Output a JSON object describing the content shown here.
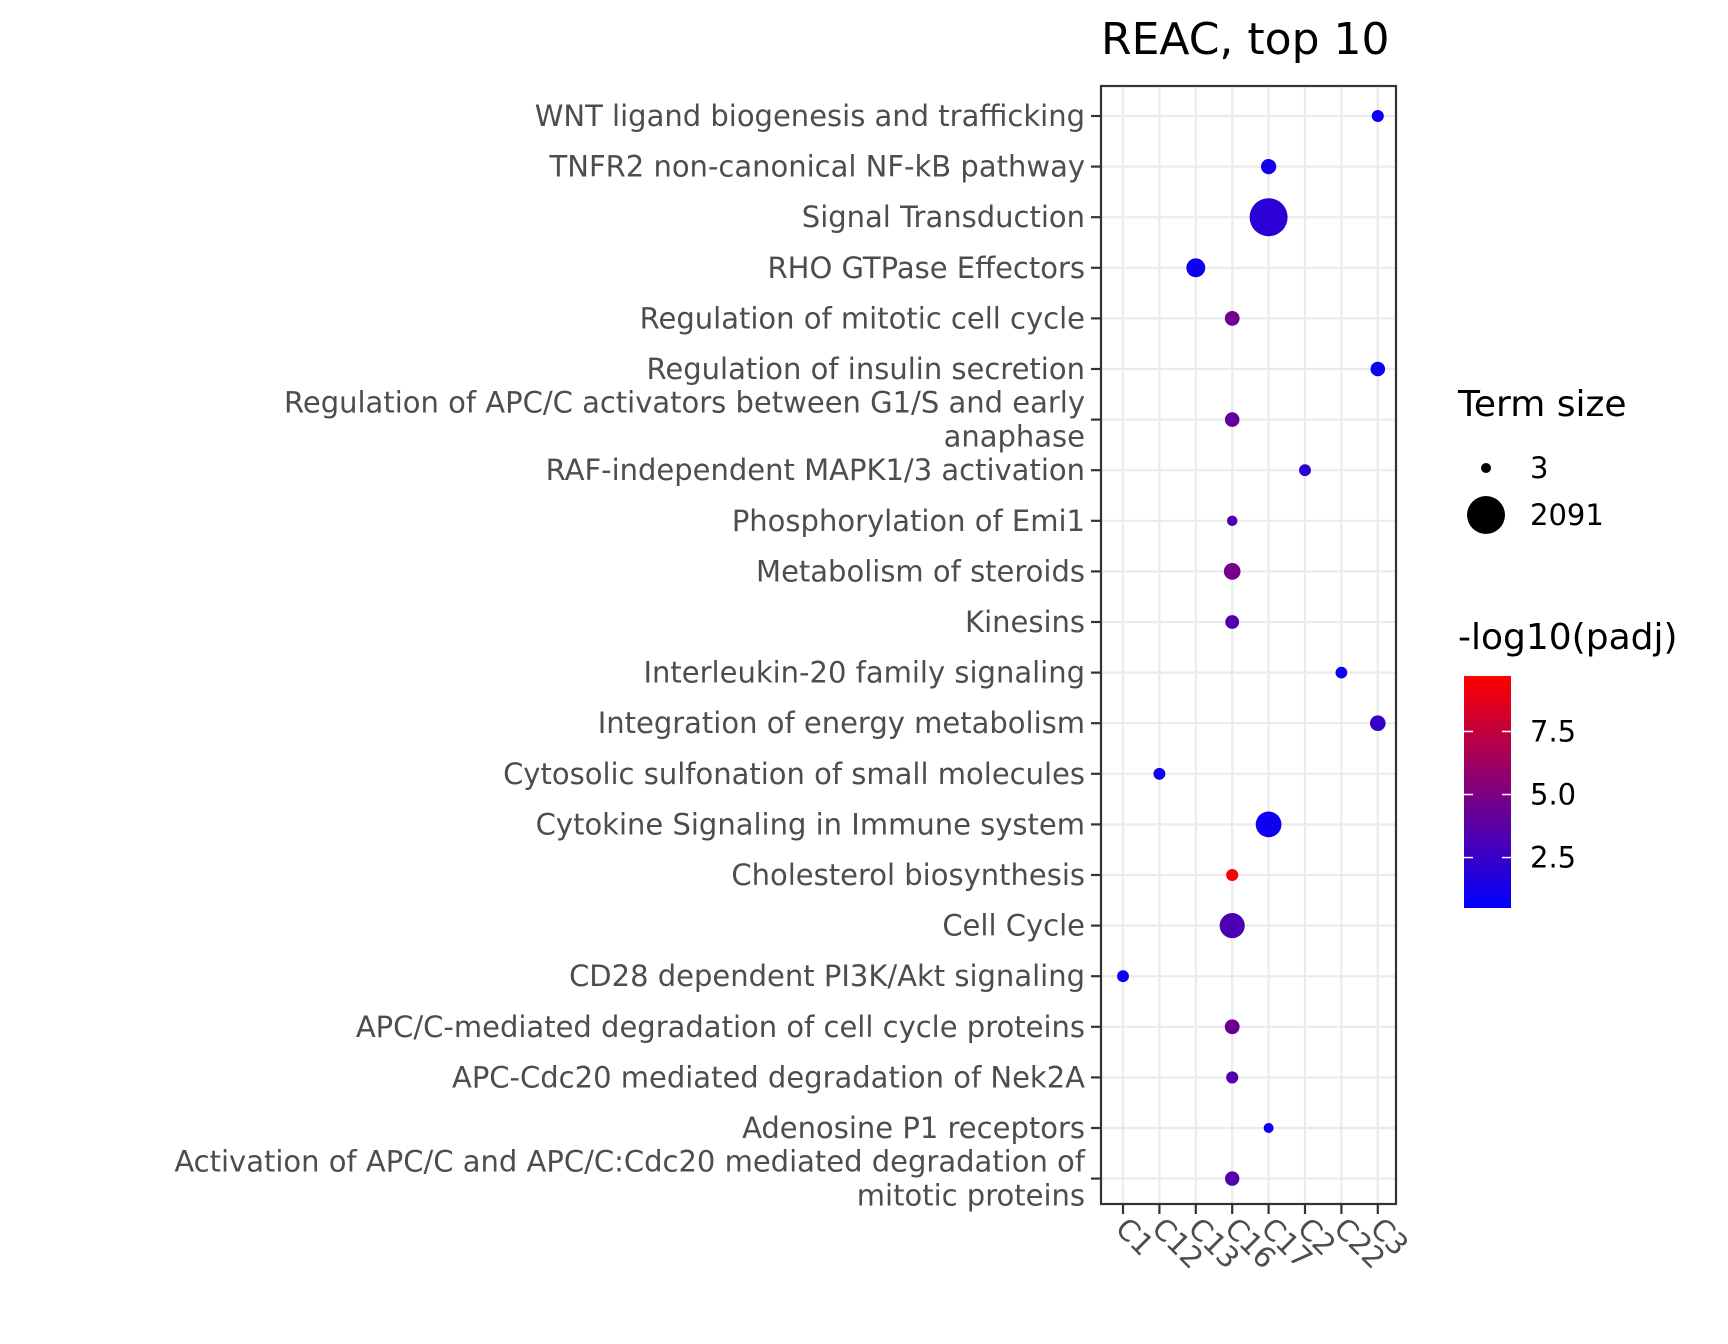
{
  "chart_data": {
    "type": "scatter",
    "title": "REAC, top 10",
    "xlabel": "",
    "ylabel": "",
    "x_categories": [
      "C1",
      "C12",
      "C13",
      "C16",
      "C17",
      "C2",
      "C22",
      "C3"
    ],
    "y_categories": [
      "WNT ligand biogenesis and trafficking",
      "TNFR2 non-canonical NF-kB pathway",
      "Signal Transduction",
      "RHO GTPase Effectors",
      "Regulation of mitotic cell cycle",
      "Regulation of insulin secretion",
      "Regulation of APC/C activators between G1/S and early anaphase",
      "RAF-independent MAPK1/3 activation",
      "Phosphorylation of Emi1",
      "Metabolism of steroids",
      "Kinesins",
      "Interleukin-20 family signaling",
      "Integration of energy metabolism",
      "Cytosolic sulfonation of small molecules",
      "Cytokine Signaling in Immune system",
      "Cholesterol biosynthesis",
      "Cell Cycle",
      "CD28 dependent PI3K/Akt signaling",
      "APC/C-mediated degradation of cell cycle proteins",
      "APC-Cdc20 mediated degradation of Nek2A",
      "Adenosine P1 receptors",
      "Activation of APC/C and APC/C:Cdc20 mediated degradation of mitotic proteins"
    ],
    "y_category_lines": [
      [
        "WNT ligand biogenesis and trafficking"
      ],
      [
        "TNFR2 non-canonical NF-kB pathway"
      ],
      [
        "Signal Transduction"
      ],
      [
        "RHO GTPase Effectors"
      ],
      [
        "Regulation of mitotic cell cycle"
      ],
      [
        "Regulation of insulin secretion"
      ],
      [
        "Regulation of APC/C activators between G1/S and early",
        "anaphase"
      ],
      [
        "RAF-independent MAPK1/3 activation"
      ],
      [
        "Phosphorylation of Emi1"
      ],
      [
        "Metabolism of steroids"
      ],
      [
        "Kinesins"
      ],
      [
        "Interleukin-20 family signaling"
      ],
      [
        "Integration of energy metabolism"
      ],
      [
        "Cytosolic sulfonation of small molecules"
      ],
      [
        "Cytokine Signaling in Immune system"
      ],
      [
        "Cholesterol biosynthesis"
      ],
      [
        "Cell Cycle"
      ],
      [
        "CD28 dependent PI3K/Akt signaling"
      ],
      [
        "APC/C-mediated degradation of cell cycle proteins"
      ],
      [
        "APC-Cdc20 mediated degradation of Nek2A"
      ],
      [
        "Adenosine P1 receptors"
      ],
      [
        "Activation of APC/C and APC/C:Cdc20 mediated degradation of",
        "mitotic proteins"
      ]
    ],
    "points": [
      {
        "term": "WNT ligand biogenesis and trafficking",
        "cluster": "C3",
        "term_size": 25,
        "neg_log10_padj": 0.9
      },
      {
        "term": "TNFR2 non-canonical NF-kB pathway",
        "cluster": "C17",
        "term_size": 100,
        "neg_log10_padj": 1.1
      },
      {
        "term": "Signal Transduction",
        "cluster": "C17",
        "term_size": 2091,
        "neg_log10_padj": 2.0
      },
      {
        "term": "RHO GTPase Effectors",
        "cluster": "C13",
        "term_size": 250,
        "neg_log10_padj": 1.0
      },
      {
        "term": "Regulation of mitotic cell cycle",
        "cluster": "C16",
        "term_size": 85,
        "neg_log10_padj": 4.5
      },
      {
        "term": "Regulation of insulin secretion",
        "cluster": "C3",
        "term_size": 80,
        "neg_log10_padj": 1.0
      },
      {
        "term": "Regulation of APC/C activators between G1/S and early anaphase",
        "cluster": "C16",
        "term_size": 80,
        "neg_log10_padj": 4.0
      },
      {
        "term": "RAF-independent MAPK1/3 activation",
        "cluster": "C2",
        "term_size": 22,
        "neg_log10_padj": 2.2
      },
      {
        "term": "Phosphorylation of Emi1",
        "cluster": "C16",
        "term_size": 6,
        "neg_log10_padj": 3.3
      },
      {
        "term": "Metabolism of steroids",
        "cluster": "C16",
        "term_size": 150,
        "neg_log10_padj": 4.7
      },
      {
        "term": "Kinesins",
        "cluster": "C16",
        "term_size": 60,
        "neg_log10_padj": 3.5
      },
      {
        "term": "Interleukin-20 family signaling",
        "cluster": "C22",
        "term_size": 20,
        "neg_log10_padj": 1.0
      },
      {
        "term": "Integration of energy metabolism",
        "cluster": "C3",
        "term_size": 110,
        "neg_log10_padj": 2.5
      },
      {
        "term": "Cytosolic sulfonation of small molecules",
        "cluster": "C12",
        "term_size": 23,
        "neg_log10_padj": 1.0
      },
      {
        "term": "Cytokine Signaling in Immune system",
        "cluster": "C17",
        "term_size": 700,
        "neg_log10_padj": 1.0
      },
      {
        "term": "Cholesterol biosynthesis",
        "cluster": "C16",
        "term_size": 25,
        "neg_log10_padj": 9.5
      },
      {
        "term": "Cell Cycle",
        "cluster": "C16",
        "term_size": 650,
        "neg_log10_padj": 3.2
      },
      {
        "term": "CD28 dependent PI3K/Akt signaling",
        "cluster": "C1",
        "term_size": 22,
        "neg_log10_padj": 1.0
      },
      {
        "term": "APC/C-mediated degradation of cell cycle proteins",
        "cluster": "C16",
        "term_size": 87,
        "neg_log10_padj": 4.3
      },
      {
        "term": "APC-Cdc20 mediated degradation of Nek2A",
        "cluster": "C16",
        "term_size": 26,
        "neg_log10_padj": 3.5
      },
      {
        "term": "Adenosine P1 receptors",
        "cluster": "C17",
        "term_size": 3,
        "neg_log10_padj": 1.0
      },
      {
        "term": "Activation of APC/C and APC/C:Cdc20 mediated degradation of mitotic proteins",
        "cluster": "C16",
        "term_size": 75,
        "neg_log10_padj": 3.6
      }
    ],
    "size_legend": {
      "title": "Term size",
      "entries": [
        {
          "label": "3",
          "value": 3
        },
        {
          "label": "2091",
          "value": 2091
        }
      ]
    },
    "color_legend": {
      "title": "-log10(padj)",
      "range": [
        0.5,
        9.7
      ],
      "ticks": [
        {
          "label": "2.5",
          "value": 2.5
        },
        {
          "label": "5.0",
          "value": 5.0
        },
        {
          "label": "7.5",
          "value": 7.5
        }
      ],
      "low_color": "#0000ff",
      "high_color": "#ff0000"
    },
    "grid": true,
    "legend_position": "right"
  }
}
